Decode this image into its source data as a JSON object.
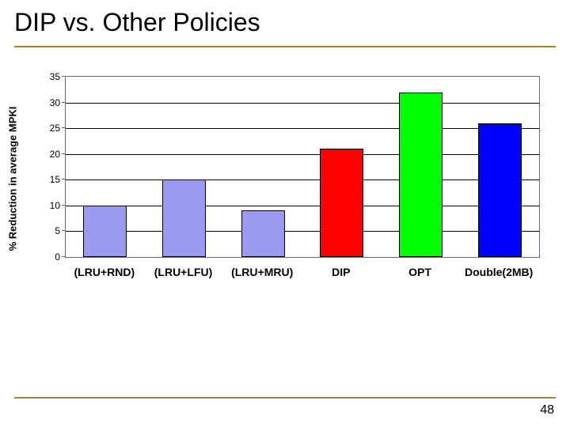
{
  "title": "DIP vs. Other Policies",
  "page_number": "48",
  "rule_color": "#9a8b28",
  "chart": {
    "type": "bar",
    "ylabel": "% Reduction in average MPKI",
    "ylim": [
      0,
      35
    ],
    "ytick_step": 5,
    "yticks": [
      0,
      5,
      10,
      15,
      20,
      25,
      30,
      35
    ],
    "grid_color": "#000000",
    "border_color": "#6b6b6b",
    "background_color": "#ffffff",
    "label_fontsize": 13,
    "tick_fontsize": 12,
    "xlabel_fontsize": 14,
    "bar_border_color": "#000000",
    "bars": [
      {
        "label": "(LRU+RND)",
        "value": 10,
        "color": "#9a9af0"
      },
      {
        "label": "(LRU+LFU)",
        "value": 15,
        "color": "#9a9af0"
      },
      {
        "label": "(LRU+MRU)",
        "value": 9,
        "color": "#9a9af0"
      },
      {
        "label": "DIP",
        "value": 21,
        "color": "#ff0000"
      },
      {
        "label": "OPT",
        "value": 32,
        "color": "#00ff00"
      },
      {
        "label": "Double(2MB)",
        "value": 26,
        "color": "#0000ff"
      }
    ]
  }
}
